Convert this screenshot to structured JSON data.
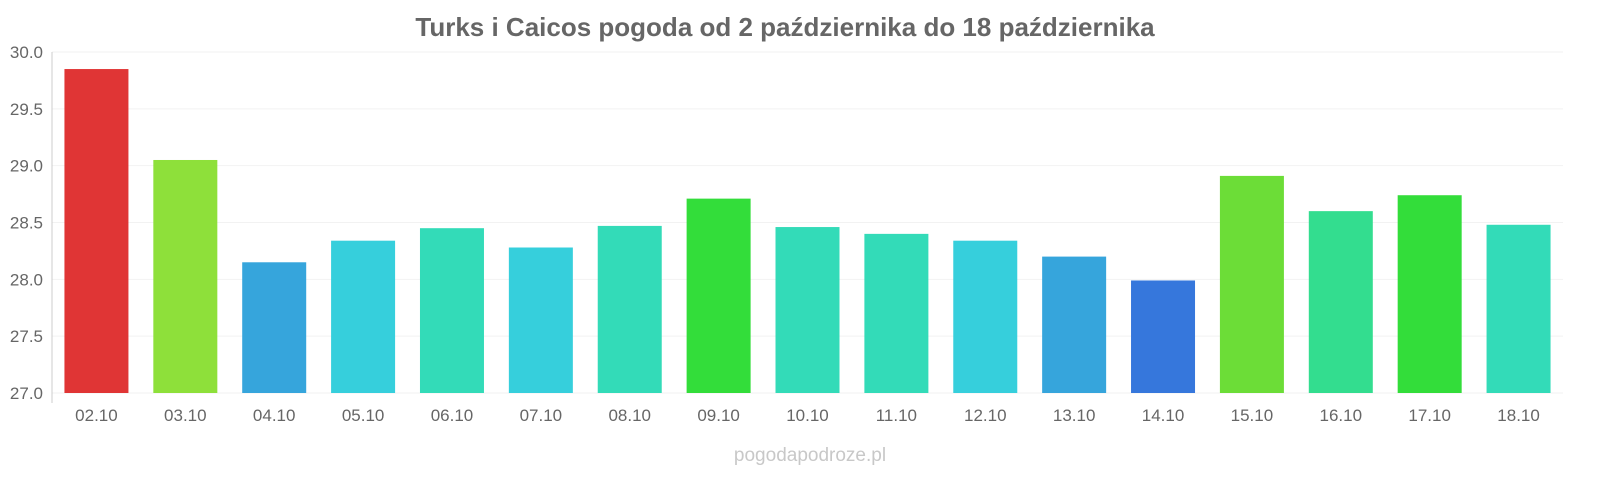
{
  "chart_data": {
    "type": "bar",
    "title": "Turks i Caicos pogoda od 2 października do 18 października",
    "xlabel": "",
    "ylabel": "",
    "ylim": [
      27.0,
      30.0
    ],
    "yticks": [
      "27.0",
      "27.5",
      "28.0",
      "28.5",
      "29.0",
      "29.5",
      "30.0"
    ],
    "grid": true,
    "categories": [
      "02.10",
      "03.10",
      "04.10",
      "05.10",
      "06.10",
      "07.10",
      "08.10",
      "09.10",
      "10.10",
      "11.10",
      "12.10",
      "13.10",
      "14.10",
      "15.10",
      "16.10",
      "17.10",
      "18.10"
    ],
    "values": [
      29.85,
      29.05,
      28.15,
      28.34,
      28.45,
      28.28,
      28.47,
      28.71,
      28.46,
      28.4,
      28.34,
      28.2,
      27.99,
      28.91,
      28.6,
      28.74,
      28.48
    ],
    "colors": [
      "#e03535",
      "#8ee03a",
      "#36a5dc",
      "#36cfdc",
      "#33dbb8",
      "#36cfdc",
      "#33dbb8",
      "#33dd3a",
      "#33dbb8",
      "#33dbb8",
      "#36cfdc",
      "#36a5dc",
      "#3677dc",
      "#6cdd37",
      "#33dd8f",
      "#33dd3a",
      "#33dbb8"
    ]
  },
  "watermark": "pogodapodroze.pl"
}
